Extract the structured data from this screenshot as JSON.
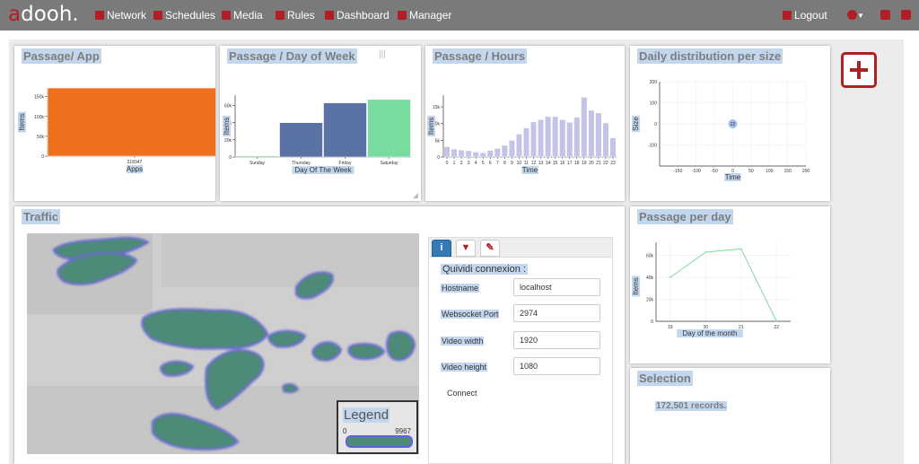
{
  "app": {
    "logo_first": "a",
    "logo_rest": "dooh."
  },
  "nav": {
    "items": [
      {
        "label": "Network",
        "icon": "mobile-icon"
      },
      {
        "label": "Schedules",
        "icon": "calendar-icon"
      },
      {
        "label": "Media",
        "icon": "film-icon"
      },
      {
        "label": "Rules",
        "icon": "check-icon"
      },
      {
        "label": "Dashboard",
        "icon": "bar-chart-icon"
      },
      {
        "label": "Manager",
        "icon": "gears-icon"
      }
    ],
    "logout": "Logout",
    "right_icons": [
      "globe-icon",
      "copy-icon",
      "download-icon"
    ]
  },
  "colors": {
    "brand": "#b21e26",
    "topbar": "#7a7a7a",
    "selection": "#c2d7ee"
  },
  "panels": {
    "passage_app": {
      "title": "Passage/ App"
    },
    "passage_dow": {
      "title": "Passage / Day of Week"
    },
    "passage_hours": {
      "title": "Passage / Hours"
    },
    "daily_dist": {
      "title": "Daily distribution per size"
    },
    "traffic": {
      "title": "Traffic"
    },
    "passage_day": {
      "title": "Passage per day"
    },
    "selection": {
      "title": "Selection",
      "records": "172,501 records."
    }
  },
  "traffic": {
    "tabs": [
      "info-icon",
      "filter-icon",
      "brush-icon"
    ],
    "heading": "Quividi connexion :",
    "fields": [
      {
        "label": "Hostname",
        "value": "localhost"
      },
      {
        "label": "Websocket Port",
        "value": "2974"
      },
      {
        "label": "Video width",
        "value": "1920"
      },
      {
        "label": "Video height",
        "value": "1080"
      }
    ],
    "connect": "Connect",
    "legend": {
      "title": "Legend",
      "min": "0",
      "max": "9967"
    }
  },
  "chart_data": [
    {
      "type": "bar",
      "categories": [
        "218347"
      ],
      "values": [
        172000
      ],
      "xlabel": "Apps",
      "ylabel": "Items",
      "ylim": [
        0,
        172000
      ],
      "yticks": [
        "0",
        "50k",
        "100k",
        "150k"
      ],
      "color": "#f06f1e",
      "grid": false
    },
    {
      "type": "bar",
      "categories": [
        "Sunday",
        "Thursday",
        "Friday",
        "Saturday"
      ],
      "values": [
        1500,
        40000,
        63000,
        67000
      ],
      "colors": [
        "#78dca0",
        "#5a73a4",
        "#5a73a4",
        "#78dca0"
      ],
      "xlabel": "Day Of The Week",
      "ylabel": "Items",
      "ylim": [
        0,
        72000
      ],
      "yticks": [
        "0",
        "20k",
        "40k",
        "60k"
      ],
      "grid": false
    },
    {
      "type": "bar",
      "categories": [
        "0",
        "1",
        "2",
        "3",
        "4",
        "5",
        "6",
        "7",
        "8",
        "9",
        "10",
        "11",
        "12",
        "13",
        "14",
        "15",
        "16",
        "17",
        "18",
        "19",
        "20",
        "21",
        "22",
        "23"
      ],
      "values": [
        3100,
        2400,
        2100,
        1900,
        1500,
        1300,
        2000,
        2600,
        3500,
        5000,
        6900,
        8700,
        10500,
        11200,
        12100,
        12100,
        11200,
        10400,
        11900,
        17900,
        14000,
        13200,
        10200,
        5700
      ],
      "xlabel": "Time",
      "ylabel": "Items",
      "ylim": [
        0,
        18500
      ],
      "yticks": [
        "0",
        "5k",
        "10k",
        "15k"
      ],
      "color": "#c3c3e5",
      "grid": false
    },
    {
      "type": "scatter",
      "points": [
        {
          "x": 0,
          "y": 0,
          "label": "22"
        }
      ],
      "xlabel": "Time",
      "ylabel": "Size",
      "xlim": [
        -200,
        200
      ],
      "ylim": [
        -200,
        200
      ],
      "xticks": [
        "-150",
        "-100",
        "-50",
        "0",
        "50",
        "100",
        "150",
        "200"
      ],
      "yticks": [
        "200",
        "100",
        "0",
        "-100"
      ],
      "grid": true,
      "color": "#a6bfea"
    },
    {
      "type": "line",
      "x": [
        19,
        20,
        21,
        22
      ],
      "values": [
        40000,
        63000,
        66000,
        0
      ],
      "xlabel": "Day of the month",
      "ylabel": "Items",
      "xlim": [
        18.6,
        22.4
      ],
      "ylim": [
        0,
        72000
      ],
      "xticks": [
        "19",
        "20",
        "21",
        "22"
      ],
      "yticks": [
        "0",
        "20k",
        "40k",
        "60k"
      ],
      "grid": true,
      "color": "#7ed9a4"
    }
  ]
}
